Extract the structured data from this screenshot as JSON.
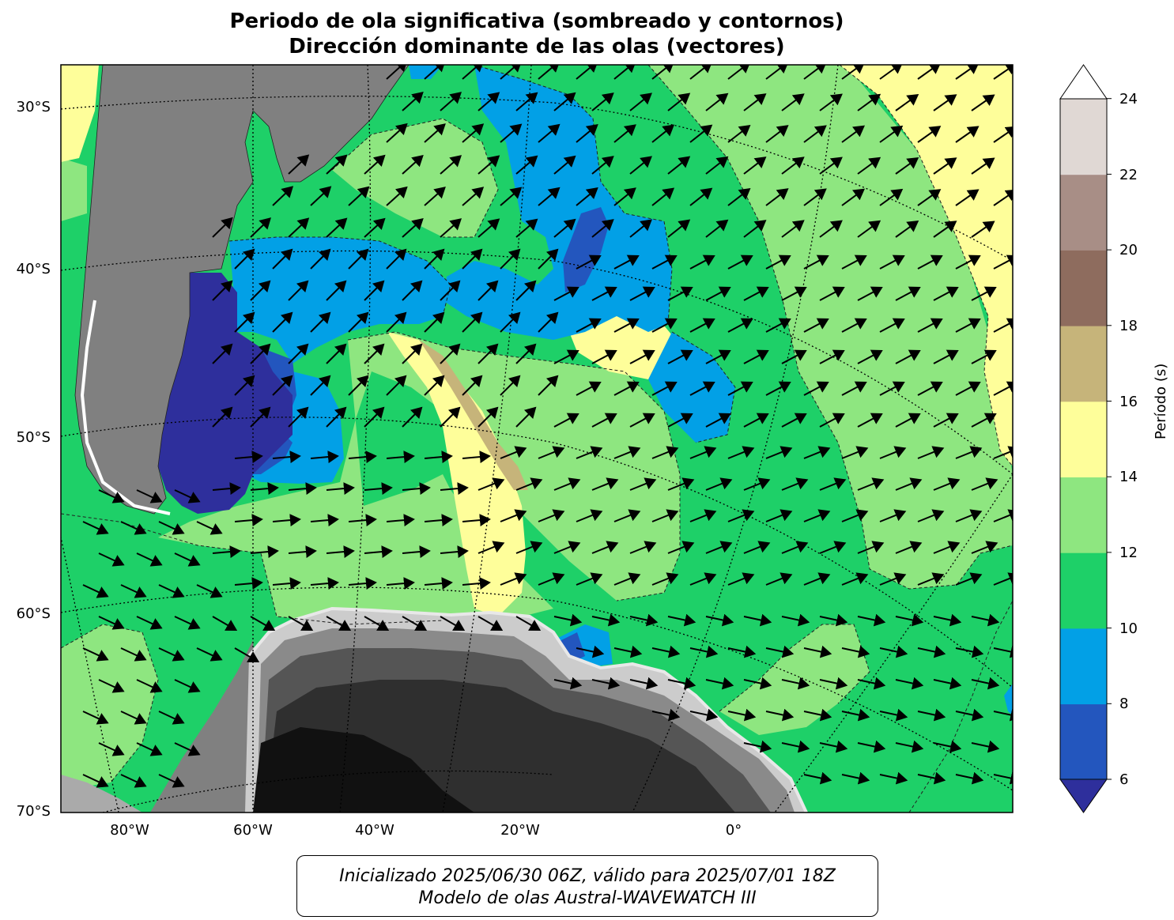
{
  "title_line1": "Periodo de ola significativa (sombreado y contornos)",
  "title_line2": "Dirección dominante de las olas (vectores)",
  "lat_labels": [
    "30°S",
    "40°S",
    "50°S",
    "60°S",
    "70°S"
  ],
  "lon_labels": [
    "80°W",
    "60°W",
    "40°W",
    "20°W",
    "0°"
  ],
  "colorbar": {
    "label": "Período (s)",
    "ticks": [
      "6",
      "8",
      "10",
      "12",
      "14",
      "16",
      "18",
      "20",
      "22",
      "24"
    ],
    "colors": [
      "#2e2f9c",
      "#2356be",
      "#02a0e6",
      "#1ed068",
      "#8ee680",
      "#fefe9a",
      "#c6b47a",
      "#8e6c5e",
      "#a88e86",
      "#e0d8d4",
      "#ffffff"
    ]
  },
  "footer_line1": "Inicializado 2025/06/30 06Z, válido para 2025/07/01 18Z",
  "footer_line2": "Modelo de olas Austral-WAVEWATCH III"
}
